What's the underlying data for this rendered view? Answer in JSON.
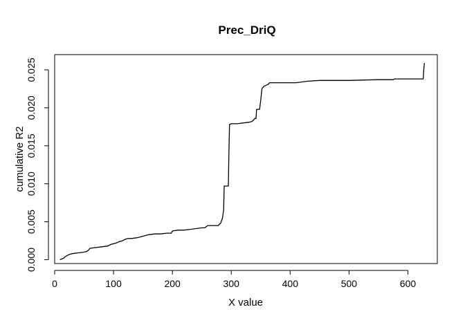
{
  "chart_data": {
    "type": "line",
    "title": "Prec_DriQ",
    "xlabel": "X value",
    "ylabel": "cumulative R2",
    "xlim": [
      0,
      650
    ],
    "ylim": [
      -0.0005,
      0.027
    ],
    "xticks": [
      0,
      100,
      200,
      300,
      400,
      500,
      600
    ],
    "yticks": [
      0.0,
      0.005,
      0.01,
      0.015,
      0.02,
      0.025
    ],
    "ytick_labels": [
      "0.000",
      "0.005",
      "0.010",
      "0.015",
      "0.020",
      "0.025"
    ],
    "grid": false,
    "legend": "none",
    "line_color": "#000000",
    "series": [
      {
        "x": [
          9,
          12,
          15,
          18,
          20,
          25,
          30,
          40,
          50,
          55,
          58,
          60,
          70,
          80,
          90,
          95,
          100,
          105,
          110,
          115,
          120,
          125,
          130,
          140,
          145,
          150,
          155,
          160,
          170,
          180,
          190,
          198,
          200,
          210,
          220,
          230,
          240,
          250,
          255,
          260,
          265,
          270,
          275,
          278,
          280,
          282,
          285,
          286,
          287,
          288,
          289,
          290,
          295,
          296,
          297,
          300,
          310,
          320,
          330,
          335,
          338,
          340,
          342,
          343,
          348,
          350,
          352,
          355,
          360,
          363,
          365,
          380,
          400,
          410,
          420,
          430,
          450,
          500,
          550,
          575,
          577,
          580,
          600,
          626,
          627,
          628
        ],
        "y": [
          0.0,
          0.0001,
          0.0002,
          0.0004,
          0.0005,
          0.0007,
          0.0008,
          0.0009,
          0.001,
          0.0011,
          0.0013,
          0.0015,
          0.0016,
          0.0017,
          0.0018,
          0.002,
          0.0021,
          0.0022,
          0.0024,
          0.0025,
          0.0027,
          0.0028,
          0.0028,
          0.0029,
          0.003,
          0.0031,
          0.0032,
          0.0033,
          0.0034,
          0.0034,
          0.0035,
          0.0035,
          0.0038,
          0.0039,
          0.0039,
          0.004,
          0.0041,
          0.0042,
          0.0042,
          0.0045,
          0.0045,
          0.0045,
          0.0045,
          0.0045,
          0.0047,
          0.0048,
          0.0055,
          0.006,
          0.0065,
          0.0097,
          0.0097,
          0.0097,
          0.0097,
          0.014,
          0.0178,
          0.0179,
          0.0179,
          0.018,
          0.0181,
          0.0182,
          0.0184,
          0.0186,
          0.0186,
          0.0198,
          0.0198,
          0.021,
          0.0225,
          0.0228,
          0.023,
          0.0231,
          0.0233,
          0.0233,
          0.0233,
          0.0233,
          0.0234,
          0.0235,
          0.0236,
          0.0236,
          0.0237,
          0.0237,
          0.0238,
          0.0238,
          0.0238,
          0.0238,
          0.025,
          0.0259
        ]
      }
    ]
  }
}
